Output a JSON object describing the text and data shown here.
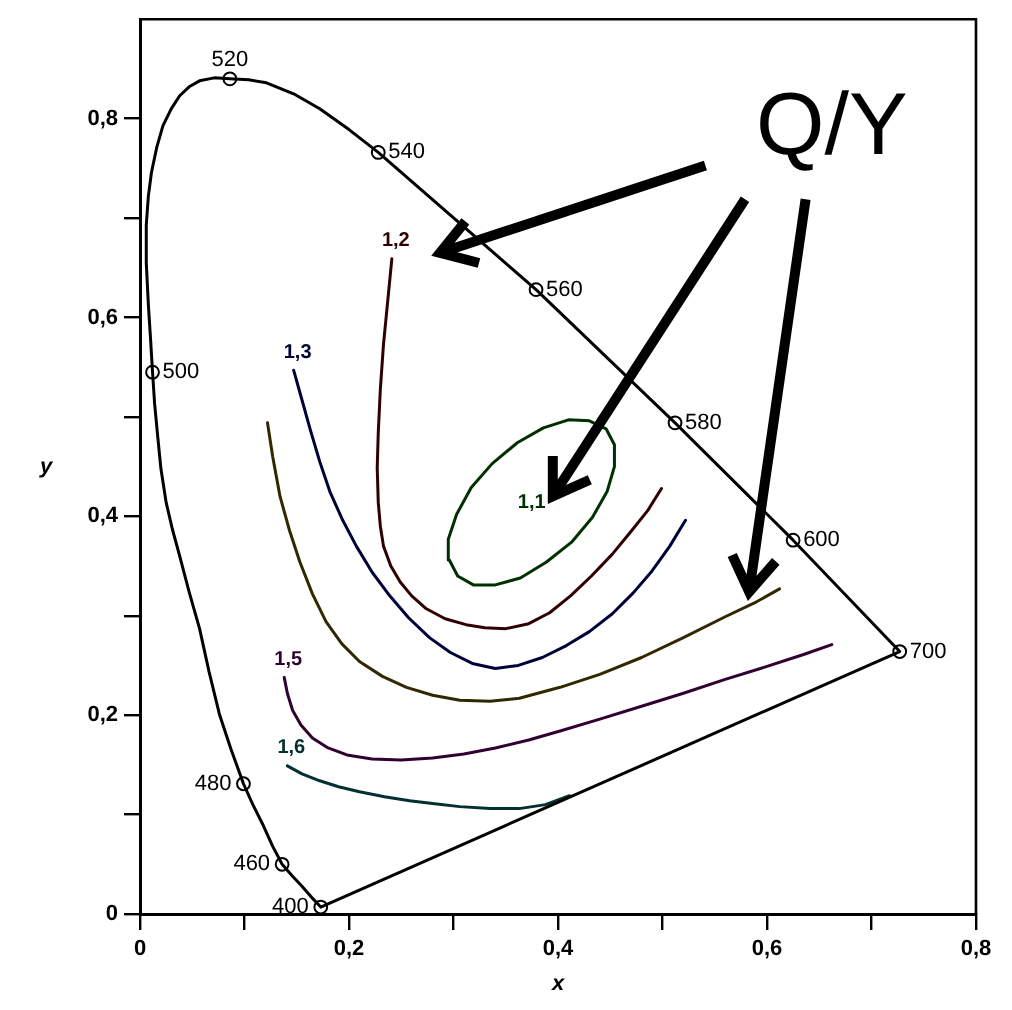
{
  "chart_data": {
    "type": "line",
    "xlabel": "x",
    "ylabel": "y",
    "annotations": [
      "Q/Y",
      {
        "text": "400",
        "x": 0.173,
        "y": 0.007
      },
      {
        "text": "460",
        "x": 0.136,
        "y": 0.05
      },
      {
        "text": "480",
        "x": 0.099,
        "y": 0.131
      },
      {
        "text": "500",
        "x": 0.012,
        "y": 0.545
      },
      {
        "text": "520",
        "x": 0.086,
        "y": 0.84
      },
      {
        "text": "540",
        "x": 0.228,
        "y": 0.766
      },
      {
        "text": "560",
        "x": 0.379,
        "y": 0.628
      },
      {
        "text": "580",
        "x": 0.512,
        "y": 0.494
      },
      {
        "text": "600",
        "x": 0.625,
        "y": 0.376
      },
      {
        "text": "700",
        "x": 0.727,
        "y": 0.264
      }
    ],
    "xlim": [
      0,
      0.8
    ],
    "ylim": [
      0,
      0.9
    ],
    "xticks": [
      0,
      {
        "value": 0.1,
        "label": null
      },
      {
        "value": 0.2,
        "label": "0,2"
      },
      {
        "value": 0.3,
        "label": null
      },
      {
        "value": 0.4,
        "label": "0,4"
      },
      {
        "value": 0.5,
        "label": null
      },
      {
        "value": 0.6,
        "label": "0,6"
      },
      {
        "value": 0.7,
        "label": null
      },
      {
        "value": 0.8,
        "label": "0,8"
      }
    ],
    "yticks": [
      0,
      {
        "value": 0.1,
        "label": null
      },
      {
        "value": 0.2,
        "label": "0,2"
      },
      {
        "value": 0.3,
        "label": null
      },
      {
        "value": 0.4,
        "label": "0,4"
      },
      {
        "value": 0.5,
        "label": null
      },
      {
        "value": 0.6,
        "label": "0,6"
      },
      {
        "value": 0.7,
        "label": null
      },
      {
        "value": 0.8,
        "label": "0,8"
      }
    ],
    "grid": false,
    "legend": false,
    "series": [
      {
        "color": "#000000",
        "x": [
          0.173,
          0.164,
          0.155,
          0.146,
          0.136,
          0.127,
          0.118,
          0.108,
          0.099,
          0.087,
          0.076,
          0.066,
          0.057,
          0.047,
          0.038,
          0.031,
          0.025,
          0.02,
          0.017,
          0.014,
          0.012,
          0.01,
          0.008,
          0.006,
          0.006,
          0.008,
          0.011,
          0.016,
          0.022,
          0.03,
          0.038,
          0.047,
          0.057,
          0.071,
          0.086,
          0.104,
          0.121,
          0.147,
          0.172,
          0.2,
          0.228,
          0.379,
          0.512,
          0.625,
          0.727,
          0.173,
          0.164,
          0.155,
          0.146,
          0.136
        ],
        "values": [
          0.007,
          0.017,
          0.028,
          0.038,
          0.05,
          0.068,
          0.089,
          0.11,
          0.131,
          0.166,
          0.201,
          0.244,
          0.287,
          0.324,
          0.36,
          0.387,
          0.414,
          0.448,
          0.48,
          0.513,
          0.545,
          0.58,
          0.613,
          0.655,
          0.693,
          0.722,
          0.746,
          0.771,
          0.793,
          0.81,
          0.823,
          0.832,
          0.838,
          0.841,
          0.84,
          0.839,
          0.836,
          0.825,
          0.81,
          0.789,
          0.766,
          0.628,
          0.494,
          0.376,
          0.264,
          0.007,
          0.017,
          0.028,
          0.038,
          0.05
        ]
      },
      {
        "type": "scatter",
        "marker": "circle",
        "color": "#000000",
        "x": [
          0.173,
          0.136,
          0.099,
          0.012,
          0.086,
          0.228,
          0.379,
          0.512,
          0.625,
          0.727
        ],
        "values": [
          0.007,
          0.05,
          0.131,
          0.545,
          0.84,
          0.766,
          0.628,
          0.494,
          0.376,
          0.264
        ]
      },
      {
        "name": "1,1",
        "color": "#003000",
        "x": [
          0.304,
          0.296,
          0.295,
          0.303,
          0.317,
          0.337,
          0.361,
          0.386,
          0.41,
          0.43,
          0.446,
          0.454,
          0.454,
          0.447,
          0.433,
          0.413,
          0.389,
          0.364,
          0.34,
          0.319,
          0.304,
          0.296
        ],
        "values": [
          0.34,
          0.356,
          0.377,
          0.402,
          0.429,
          0.453,
          0.474,
          0.489,
          0.497,
          0.496,
          0.488,
          0.472,
          0.45,
          0.425,
          0.399,
          0.374,
          0.354,
          0.338,
          0.331,
          0.331,
          0.34,
          0.356
        ]
      },
      {
        "name": "1,2",
        "color": "#300000",
        "x": [
          0.241,
          0.237,
          0.233,
          0.23,
          0.228,
          0.227,
          0.228,
          0.23,
          0.233,
          0.24,
          0.249,
          0.26,
          0.274,
          0.292,
          0.312,
          0.33,
          0.35,
          0.372,
          0.392,
          0.412,
          0.432,
          0.452,
          0.47,
          0.486,
          0.499
        ],
        "values": [
          0.659,
          0.616,
          0.573,
          0.528,
          0.484,
          0.449,
          0.414,
          0.39,
          0.37,
          0.35,
          0.334,
          0.32,
          0.307,
          0.297,
          0.291,
          0.288,
          0.287,
          0.292,
          0.303,
          0.32,
          0.34,
          0.362,
          0.385,
          0.406,
          0.428
        ]
      },
      {
        "name": "1,3",
        "color": "#000038",
        "x": [
          0.147,
          0.155,
          0.163,
          0.172,
          0.182,
          0.194,
          0.207,
          0.222,
          0.239,
          0.257,
          0.277,
          0.297,
          0.318,
          0.34,
          0.362,
          0.385,
          0.408,
          0.43,
          0.452,
          0.472,
          0.49,
          0.507,
          0.522
        ],
        "values": [
          0.547,
          0.517,
          0.487,
          0.455,
          0.424,
          0.396,
          0.37,
          0.344,
          0.32,
          0.298,
          0.278,
          0.263,
          0.252,
          0.247,
          0.25,
          0.258,
          0.27,
          0.284,
          0.302,
          0.323,
          0.345,
          0.37,
          0.396
        ]
      },
      {
        "color": "#302800",
        "x": [
          0.122,
          0.127,
          0.134,
          0.143,
          0.153,
          0.165,
          0.178,
          0.193,
          0.21,
          0.232,
          0.255,
          0.28,
          0.306,
          0.335,
          0.363,
          0.402,
          0.44,
          0.48,
          0.52,
          0.56,
          0.59,
          0.612
        ],
        "values": [
          0.494,
          0.46,
          0.42,
          0.386,
          0.354,
          0.322,
          0.294,
          0.272,
          0.254,
          0.239,
          0.228,
          0.22,
          0.215,
          0.214,
          0.217,
          0.228,
          0.241,
          0.258,
          0.278,
          0.299,
          0.314,
          0.327
        ]
      },
      {
        "name": "1,5",
        "color": "#300030",
        "x": [
          0.138,
          0.141,
          0.146,
          0.154,
          0.165,
          0.18,
          0.198,
          0.222,
          0.25,
          0.28,
          0.31,
          0.34,
          0.372,
          0.402,
          0.44,
          0.48,
          0.52,
          0.56,
          0.6,
          0.635,
          0.662
        ],
        "values": [
          0.238,
          0.222,
          0.205,
          0.19,
          0.177,
          0.167,
          0.16,
          0.156,
          0.155,
          0.157,
          0.161,
          0.167,
          0.175,
          0.184,
          0.196,
          0.209,
          0.222,
          0.236,
          0.249,
          0.261,
          0.271
        ]
      },
      {
        "name": "1,6",
        "color": "#003030",
        "x": [
          0.141,
          0.155,
          0.172,
          0.19,
          0.21,
          0.234,
          0.258,
          0.282,
          0.306,
          0.335,
          0.363,
          0.388,
          0.411
        ],
        "values": [
          0.149,
          0.141,
          0.134,
          0.128,
          0.123,
          0.118,
          0.114,
          0.111,
          0.108,
          0.106,
          0.106,
          0.11,
          0.119
        ]
      }
    ]
  }
}
